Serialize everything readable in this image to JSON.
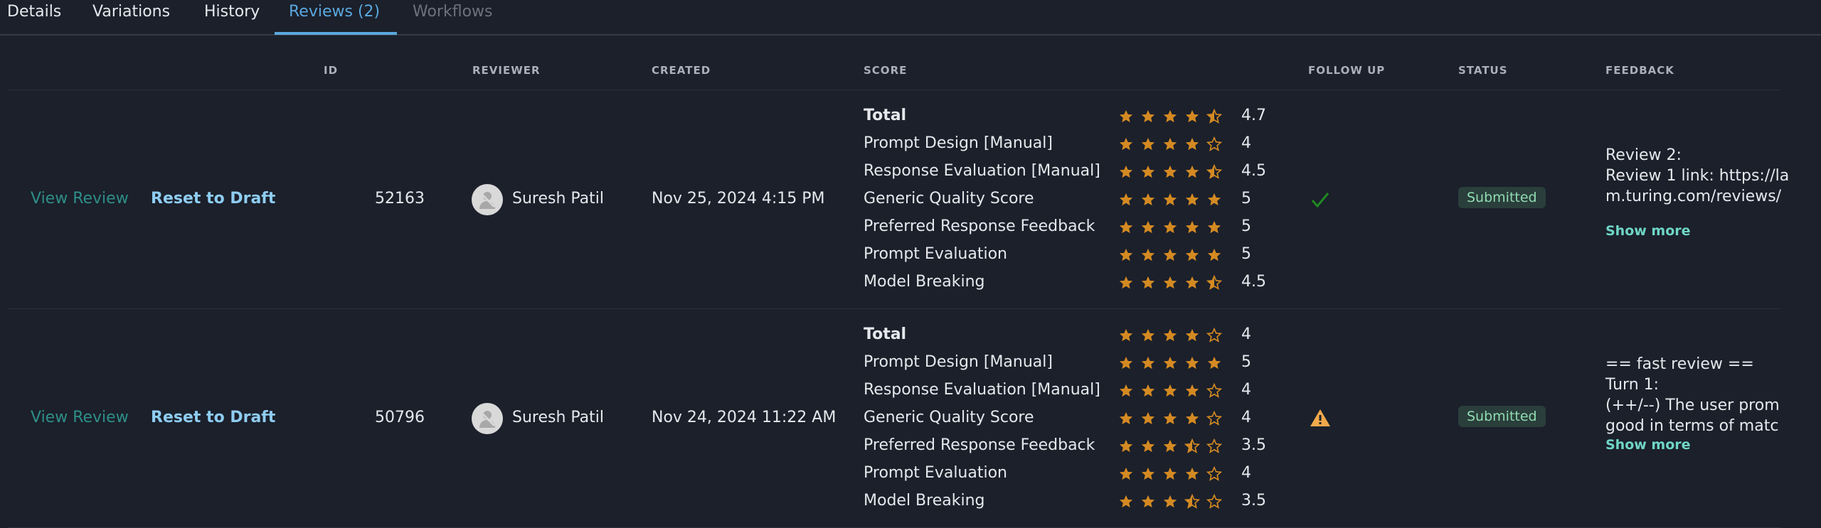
{
  "tabs": [
    {
      "label": "Details",
      "state": "normal"
    },
    {
      "label": "Variations",
      "state": "normal"
    },
    {
      "label": "History",
      "state": "normal"
    },
    {
      "label": "Reviews (2)",
      "state": "active"
    },
    {
      "label": "Workflows",
      "state": "disabled"
    }
  ],
  "table": {
    "headers": {
      "id": "ID",
      "reviewer": "REVIEWER",
      "created": "CREATED",
      "score": "SCORE",
      "follow_up": "FOLLOW UP",
      "status": "STATUS",
      "feedback": "FEEDBACK"
    },
    "rows": [
      {
        "view_label": "View Review",
        "reset_label": "Reset to Draft",
        "id": "52163",
        "reviewer": "Suresh Patil",
        "created": "Nov 25, 2024 4:15 PM",
        "scores": [
          {
            "label": "Total",
            "value": "4.7"
          },
          {
            "label": "Prompt Design [Manual]",
            "value": "4"
          },
          {
            "label": "Response Evaluation [Manual]",
            "value": "4.5"
          },
          {
            "label": "Generic Quality Score",
            "value": "5"
          },
          {
            "label": "Preferred Response Feedback",
            "value": "5"
          },
          {
            "label": "Prompt Evaluation",
            "value": "5"
          },
          {
            "label": "Model Breaking",
            "value": "4.5"
          }
        ],
        "follow_up_icon": "check-icon",
        "status": "Submitted",
        "feedback_lines": [
          "Review 2:",
          "Review 1 link: https://la",
          "m.turing.com/reviews/"
        ],
        "show_more": "Show more"
      },
      {
        "view_label": "View Review",
        "reset_label": "Reset to Draft",
        "id": "50796",
        "reviewer": "Suresh Patil",
        "created": "Nov 24, 2024 11:22 AM",
        "scores": [
          {
            "label": "Total",
            "value": "4"
          },
          {
            "label": "Prompt Design [Manual]",
            "value": "5"
          },
          {
            "label": "Response Evaluation [Manual]",
            "value": "4"
          },
          {
            "label": "Generic Quality Score",
            "value": "4"
          },
          {
            "label": "Preferred Response Feedback",
            "value": "3.5"
          },
          {
            "label": "Prompt Evaluation",
            "value": "4"
          },
          {
            "label": "Model Breaking",
            "value": "3.5"
          }
        ],
        "follow_up_icon": "warning-icon",
        "status": "Submitted",
        "feedback_lines": [
          "== fast review ==",
          "Turn 1:",
          "(++/--) The user prom",
          "good in terms of matc"
        ],
        "show_more": "Show more"
      }
    ]
  },
  "colors": {
    "background": "#1b202b",
    "accent": "#5aa8de",
    "star": "#d48a22",
    "check": "#1f8a1f",
    "warning": "#f2a94a",
    "badge_bg": "#2a3e3b",
    "badge_text": "#90dcb2",
    "show_more": "#6fd6c6"
  }
}
